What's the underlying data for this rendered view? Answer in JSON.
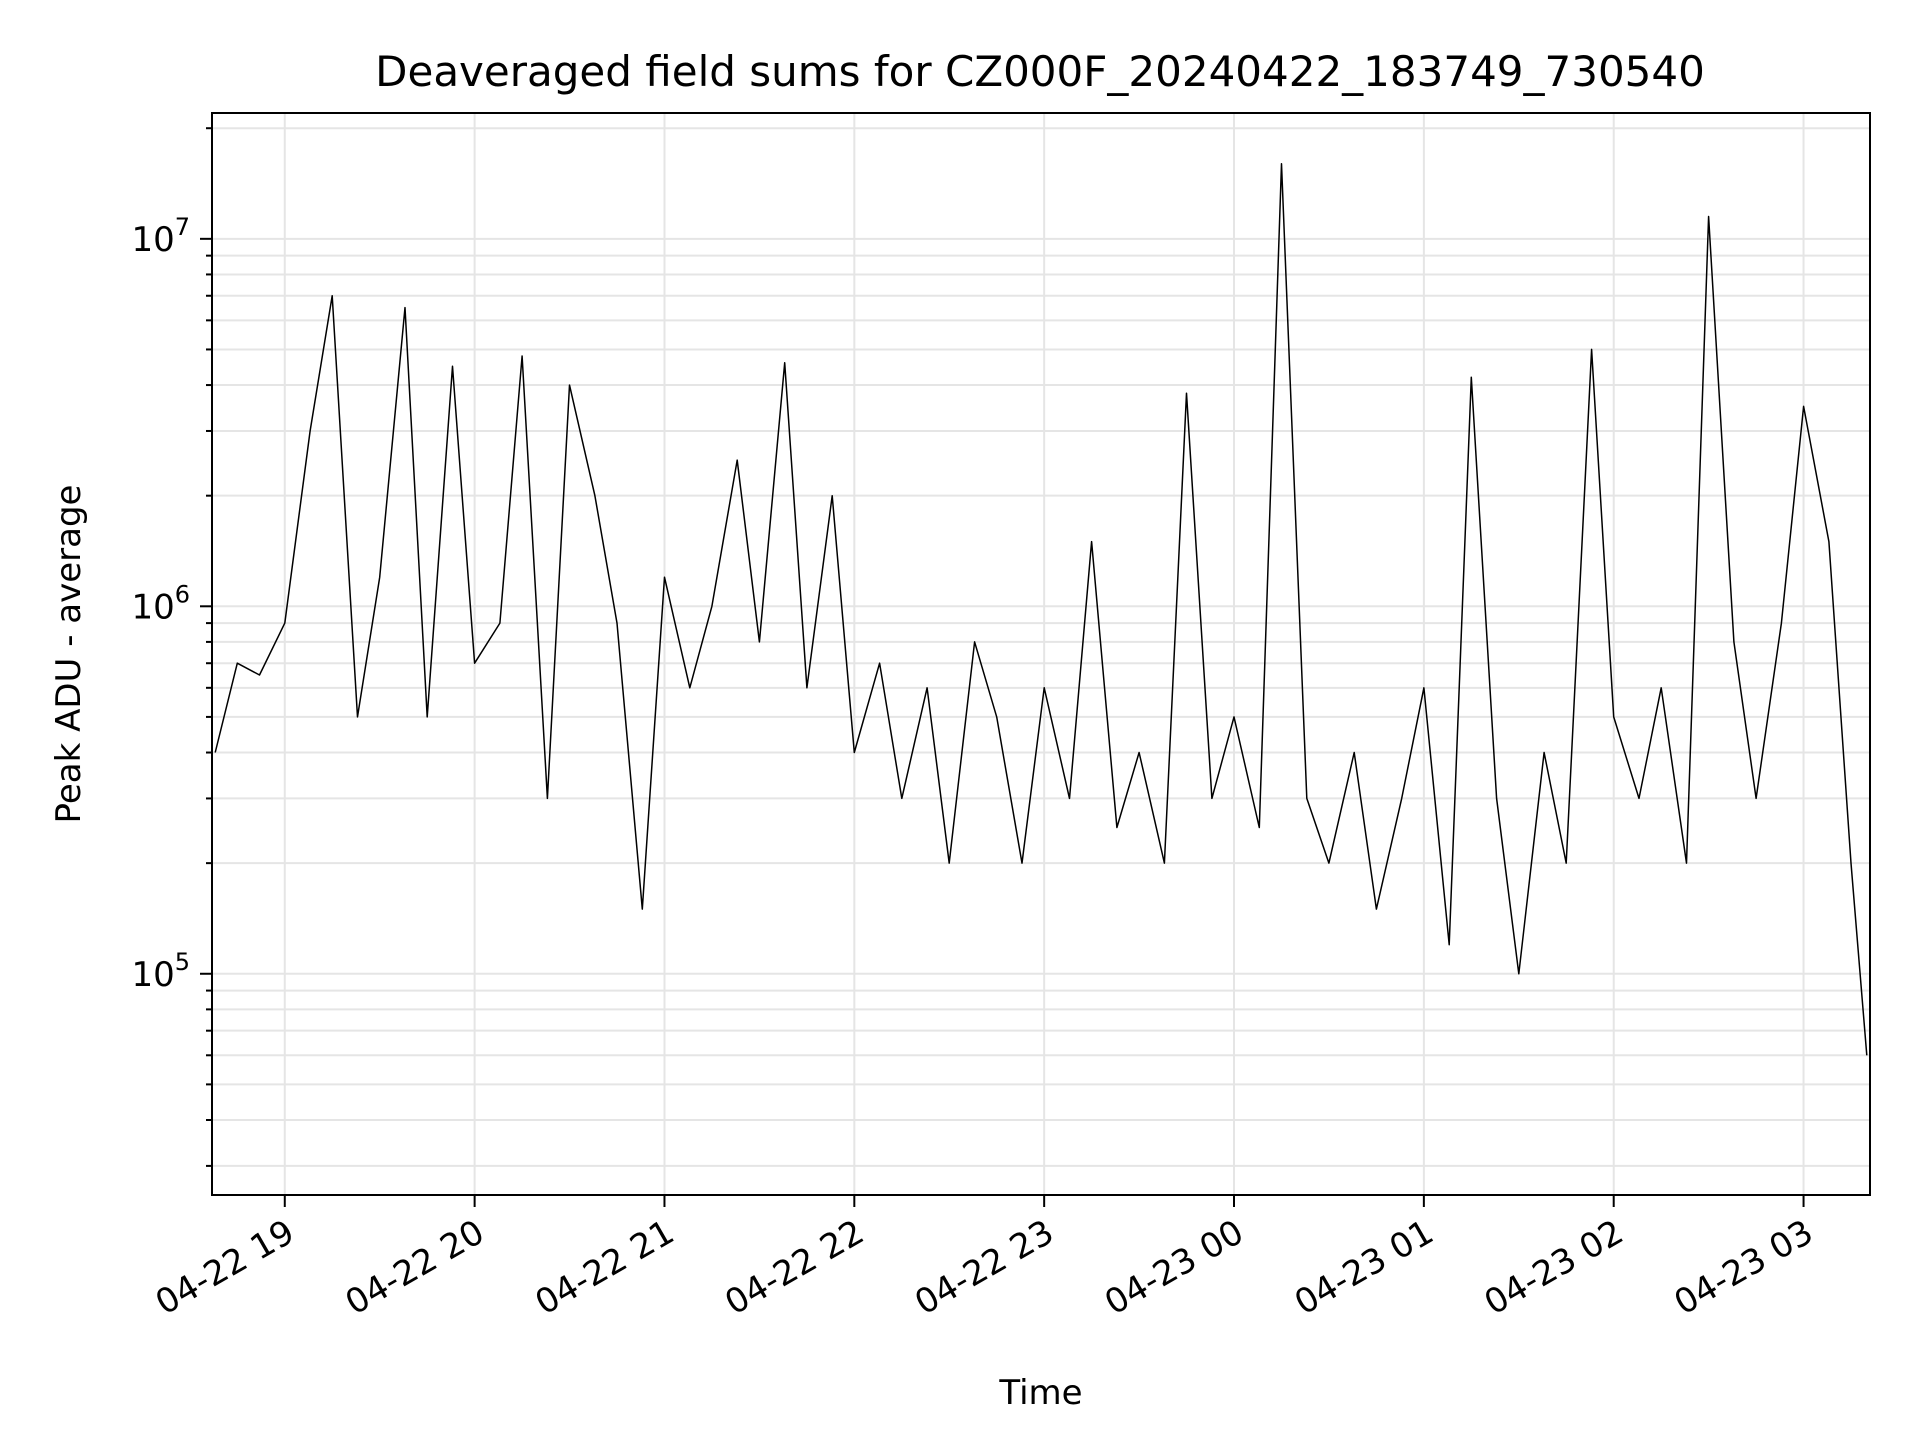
{
  "chart_data": {
    "type": "line",
    "title": "Deaveraged field sums for CZ000F_20240422_183749_730540",
    "xlabel": "Time",
    "ylabel": "Peak ADU - average",
    "yscale": "log",
    "ylim": [
      25000,
      22000000
    ],
    "xlim": [
      "2024-04-22 18:37",
      "2024-04-23 03:21"
    ],
    "grid": true,
    "x_ticks": [
      {
        "value": "2024-04-22 19:00",
        "label": "04-22 19"
      },
      {
        "value": "2024-04-22 20:00",
        "label": "04-22 20"
      },
      {
        "value": "2024-04-22 21:00",
        "label": "04-22 21"
      },
      {
        "value": "2024-04-22 22:00",
        "label": "04-22 22"
      },
      {
        "value": "2024-04-22 23:00",
        "label": "04-22 23"
      },
      {
        "value": "2024-04-23 00:00",
        "label": "04-23 00"
      },
      {
        "value": "2024-04-23 01:00",
        "label": "04-23 01"
      },
      {
        "value": "2024-04-23 02:00",
        "label": "04-23 02"
      },
      {
        "value": "2024-04-23 03:00",
        "label": "04-23 03"
      }
    ],
    "y_ticks": [
      {
        "value": 100000,
        "base": "10",
        "exp": "5"
      },
      {
        "value": 1000000,
        "base": "10",
        "exp": "6"
      },
      {
        "value": 10000000,
        "base": "10",
        "exp": "7"
      }
    ],
    "series": [
      {
        "color": "#000000",
        "x": [
          "2024-04-22 18:38",
          "2024-04-22 18:45",
          "2024-04-22 18:52",
          "2024-04-22 19:00",
          "2024-04-22 19:08",
          "2024-04-22 19:15",
          "2024-04-22 19:23",
          "2024-04-22 19:30",
          "2024-04-22 19:38",
          "2024-04-22 19:45",
          "2024-04-22 19:53",
          "2024-04-22 20:00",
          "2024-04-22 20:08",
          "2024-04-22 20:15",
          "2024-04-22 20:23",
          "2024-04-22 20:30",
          "2024-04-22 20:38",
          "2024-04-22 20:45",
          "2024-04-22 20:53",
          "2024-04-22 21:00",
          "2024-04-22 21:08",
          "2024-04-22 21:15",
          "2024-04-22 21:23",
          "2024-04-22 21:30",
          "2024-04-22 21:38",
          "2024-04-22 21:45",
          "2024-04-22 21:53",
          "2024-04-22 22:00",
          "2024-04-22 22:08",
          "2024-04-22 22:15",
          "2024-04-22 22:23",
          "2024-04-22 22:30",
          "2024-04-22 22:38",
          "2024-04-22 22:45",
          "2024-04-22 22:53",
          "2024-04-22 23:00",
          "2024-04-22 23:08",
          "2024-04-22 23:15",
          "2024-04-22 23:23",
          "2024-04-22 23:30",
          "2024-04-22 23:38",
          "2024-04-22 23:45",
          "2024-04-22 23:53",
          "2024-04-23 00:00",
          "2024-04-23 00:08",
          "2024-04-23 00:15",
          "2024-04-23 00:23",
          "2024-04-23 00:30",
          "2024-04-23 00:38",
          "2024-04-23 00:45",
          "2024-04-23 00:53",
          "2024-04-23 01:00",
          "2024-04-23 01:08",
          "2024-04-23 01:15",
          "2024-04-23 01:23",
          "2024-04-23 01:30",
          "2024-04-23 01:38",
          "2024-04-23 01:45",
          "2024-04-23 01:53",
          "2024-04-23 02:00",
          "2024-04-23 02:08",
          "2024-04-23 02:15",
          "2024-04-23 02:23",
          "2024-04-23 02:30",
          "2024-04-23 02:38",
          "2024-04-23 02:45",
          "2024-04-23 02:53",
          "2024-04-23 03:00",
          "2024-04-23 03:08",
          "2024-04-23 03:15",
          "2024-04-23 03:20"
        ],
        "y": [
          400000,
          700000,
          650000,
          900000,
          3000000,
          7000000,
          500000,
          1200000,
          6500000,
          500000,
          4500000,
          700000,
          900000,
          4800000,
          300000,
          4000000,
          2000000,
          900000,
          150000,
          1200000,
          600000,
          1000000,
          2500000,
          800000,
          4600000,
          600000,
          2000000,
          400000,
          700000,
          300000,
          600000,
          200000,
          800000,
          500000,
          200000,
          600000,
          300000,
          1500000,
          250000,
          400000,
          200000,
          3800000,
          300000,
          500000,
          250000,
          16000000,
          300000,
          200000,
          400000,
          150000,
          300000,
          600000,
          120000,
          4200000,
          300000,
          100000,
          400000,
          200000,
          5000000,
          500000,
          300000,
          600000,
          200000,
          11500000,
          800000,
          300000,
          900000,
          3500000,
          1500000,
          200000,
          60000
        ]
      }
    ]
  }
}
